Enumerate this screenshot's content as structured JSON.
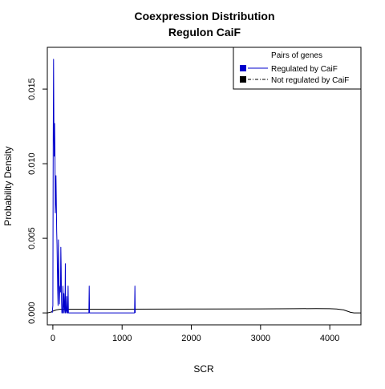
{
  "chart_data": {
    "type": "line",
    "title": "Coexpression Distribution",
    "subtitle": "Regulon CaiF",
    "xlabel": "SCR",
    "ylabel": "Probability Density",
    "xlim": [
      -80,
      4450
    ],
    "ylim": [
      -0.0008,
      0.0178
    ],
    "x_ticks": [
      0,
      1000,
      2000,
      3000,
      4000
    ],
    "x_tick_labels": [
      "0",
      "1000",
      "2000",
      "3000",
      "4000"
    ],
    "y_ticks": [
      0.0,
      0.005,
      0.01,
      0.015
    ],
    "y_tick_labels": [
      "0.000",
      "0.005",
      "0.010",
      "0.015"
    ],
    "grid": false,
    "legend": {
      "title": "Pairs of genes",
      "placement": "top-right",
      "entries": [
        "Regulated by  CaiF",
        "Not regulated by  CaiF"
      ]
    },
    "series": [
      {
        "name": "Regulated by  CaiF",
        "color": "#0000cc",
        "style": "solid",
        "points": [
          [
            -10,
            0.0
          ],
          [
            0,
            0.0005
          ],
          [
            5,
            0.0115
          ],
          [
            10,
            0.017
          ],
          [
            15,
            0.0125
          ],
          [
            20,
            0.0105
          ],
          [
            25,
            0.0127
          ],
          [
            30,
            0.0109
          ],
          [
            35,
            0.0067
          ],
          [
            40,
            0.0074
          ],
          [
            45,
            0.0092
          ],
          [
            50,
            0.0075
          ],
          [
            55,
            0.0055
          ],
          [
            60,
            0.0046
          ],
          [
            65,
            0.003
          ],
          [
            70,
            0.0015
          ],
          [
            75,
            0.0005
          ],
          [
            80,
            0.0049
          ],
          [
            85,
            0.0035
          ],
          [
            90,
            0.0018
          ],
          [
            95,
            0.0006
          ],
          [
            100,
            0.0016
          ],
          [
            105,
            0.0018
          ],
          [
            110,
            0.0014
          ],
          [
            115,
            0.0044
          ],
          [
            120,
            0.003
          ],
          [
            125,
            0.0008
          ],
          [
            130,
            0.0
          ],
          [
            140,
            0.0
          ],
          [
            145,
            0.0018
          ],
          [
            150,
            0.0011
          ],
          [
            155,
            0.0
          ],
          [
            160,
            0.0013
          ],
          [
            170,
            0.0002
          ],
          [
            175,
            0.0
          ],
          [
            180,
            0.0033
          ],
          [
            185,
            0.0
          ],
          [
            195,
            0.0002
          ],
          [
            200,
            0.0011
          ],
          [
            205,
            0.0
          ],
          [
            215,
            0.0
          ],
          [
            220,
            0.0018
          ],
          [
            225,
            0.0
          ],
          [
            520,
            0.0
          ],
          [
            525,
            0.0018
          ],
          [
            530,
            0.0
          ],
          [
            1180,
            0.0
          ],
          [
            1185,
            0.0018
          ],
          [
            1190,
            0.0
          ]
        ]
      },
      {
        "name": "Not regulated by  CaiF",
        "color": "#000000",
        "style": "solid",
        "points": [
          [
            -80,
            0.0
          ],
          [
            -30,
            5e-05
          ],
          [
            0,
            0.00012
          ],
          [
            50,
            0.0002
          ],
          [
            100,
            0.00024
          ],
          [
            200,
            0.00025
          ],
          [
            500,
            0.00025
          ],
          [
            1000,
            0.00025
          ],
          [
            2000,
            0.00026
          ],
          [
            3000,
            0.00027
          ],
          [
            3500,
            0.00028
          ],
          [
            3800,
            0.00029
          ],
          [
            4000,
            0.00028
          ],
          [
            4100,
            0.00026
          ],
          [
            4200,
            0.0002
          ],
          [
            4250,
            0.00012
          ],
          [
            4300,
            4e-05
          ],
          [
            4350,
            0.0
          ],
          [
            4450,
            0.0
          ]
        ]
      }
    ]
  }
}
